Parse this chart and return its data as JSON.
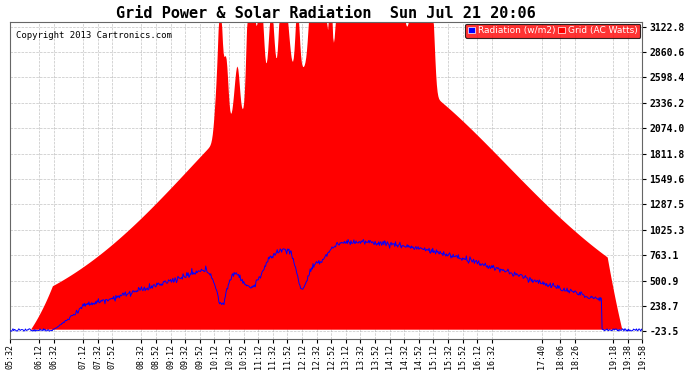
{
  "title": "Grid Power & Solar Radiation  Sun Jul 21 20:06",
  "copyright": "Copyright 2013 Cartronics.com",
  "legend_labels": [
    "Radiation (w/m2)",
    "Grid (AC Watts)"
  ],
  "y_ticks": [
    -23.5,
    238.7,
    500.9,
    763.1,
    1025.3,
    1287.5,
    1549.6,
    1811.8,
    2074.0,
    2336.2,
    2598.4,
    2860.6,
    3122.8
  ],
  "y_min": -23.5,
  "y_max": 3122.8,
  "background_color": "#ffffff",
  "plot_bg_color": "#ffffff",
  "title_fontsize": 11,
  "x_labels": [
    "05:32",
    "06:12",
    "06:32",
    "07:12",
    "07:32",
    "07:52",
    "08:32",
    "08:52",
    "09:12",
    "09:32",
    "09:52",
    "10:12",
    "10:32",
    "10:52",
    "11:12",
    "11:32",
    "11:52",
    "12:12",
    "12:32",
    "12:52",
    "13:12",
    "13:32",
    "13:52",
    "14:12",
    "14:32",
    "14:52",
    "15:12",
    "15:32",
    "15:52",
    "16:12",
    "16:32",
    "17:40",
    "18:06",
    "18:26",
    "19:18",
    "19:38",
    "19:58"
  ],
  "start_time": "05:32",
  "end_time": "19:58"
}
